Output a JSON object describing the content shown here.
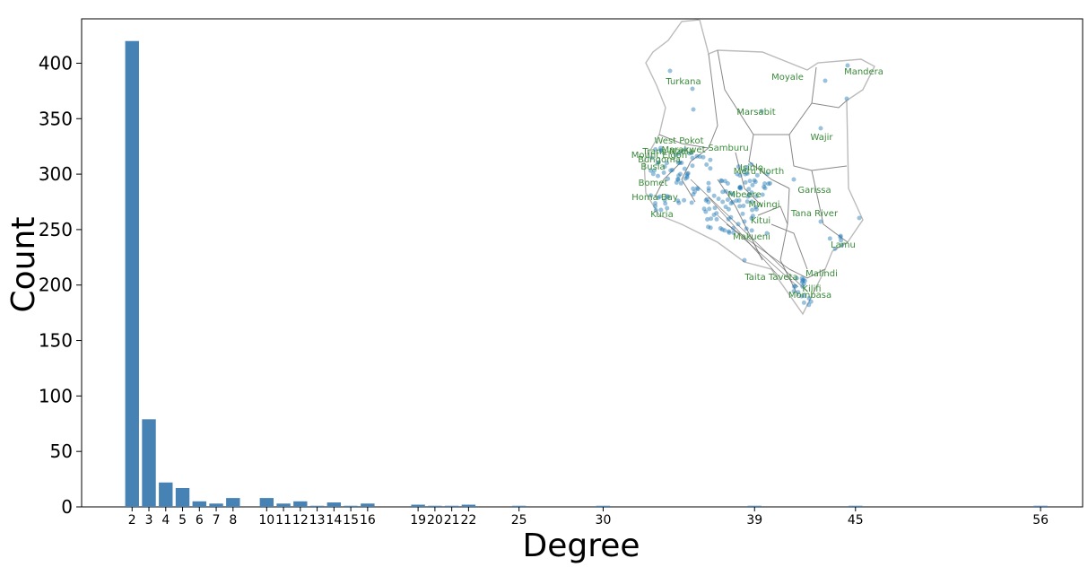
{
  "chart_data": {
    "type": "bar",
    "xlabel": "Degree",
    "ylabel": "Count",
    "ylim": [
      0,
      440
    ],
    "yticks": [
      0,
      50,
      100,
      150,
      200,
      250,
      300,
      350,
      400
    ],
    "xticks": [
      2,
      3,
      4,
      5,
      6,
      7,
      8,
      10,
      11,
      12,
      13,
      14,
      15,
      16,
      19,
      20,
      21,
      22,
      25,
      30,
      39,
      45,
      56
    ],
    "bar_color": "#4682b4",
    "bars": [
      {
        "x": 1,
        "y": 420
      },
      {
        "x": 2,
        "y": 79
      },
      {
        "x": 3,
        "y": 22
      },
      {
        "x": 4,
        "y": 17
      },
      {
        "x": 5,
        "y": 5
      },
      {
        "x": 6,
        "y": 3
      },
      {
        "x": 7,
        "y": 8
      },
      {
        "x": 9,
        "y": 8
      },
      {
        "x": 10,
        "y": 3
      },
      {
        "x": 11,
        "y": 5
      },
      {
        "x": 12,
        "y": 1
      },
      {
        "x": 13,
        "y": 4
      },
      {
        "x": 14,
        "y": 1
      },
      {
        "x": 15,
        "y": 3
      },
      {
        "x": 18,
        "y": 2
      },
      {
        "x": 19,
        "y": 1
      },
      {
        "x": 20,
        "y": 1
      },
      {
        "x": 21,
        "y": 2
      },
      {
        "x": 24,
        "y": 1
      },
      {
        "x": 29,
        "y": 1
      },
      {
        "x": 38,
        "y": 1
      },
      {
        "x": 44,
        "y": 1
      },
      {
        "x": 55,
        "y": 1
      }
    ],
    "inset_map": {
      "region_labels": [
        "Turkana",
        "Moyale",
        "Mandera",
        "Marsabit",
        "Wajir",
        "West Pokot",
        "Samburu",
        "Marakwet",
        "Isiolo",
        "Meru North",
        "Garissa",
        "Mbeere",
        "Mwingi",
        "Tana River",
        "Kitui",
        "Makueni",
        "Lamu",
        "Malindi",
        "Taita Taveta",
        "Kilifi",
        "Mombasa",
        "Kuria",
        "Homa Bay",
        "Bomet",
        "Busia",
        "Bungoma",
        "Trans Nzoia",
        "Mount Elgon"
      ],
      "point_color": "#1f77b4",
      "label_color": "#3a8a3a"
    }
  }
}
